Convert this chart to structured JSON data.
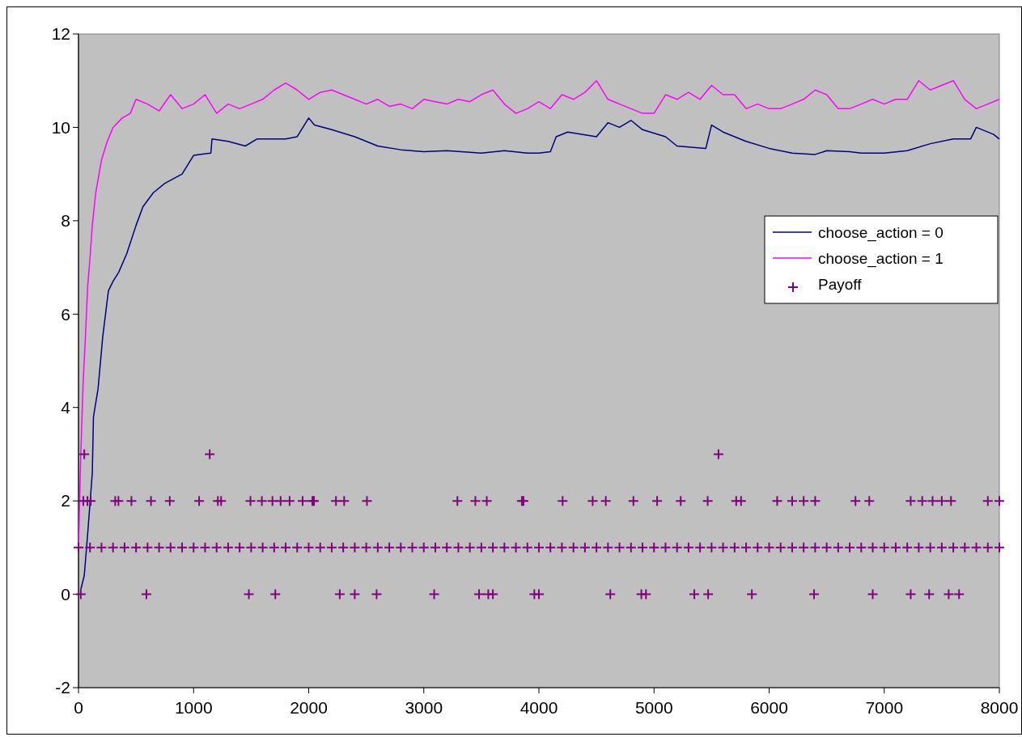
{
  "chart_data": {
    "type": "line",
    "xlim": [
      0,
      8000
    ],
    "xticks": [
      0,
      1000,
      2000,
      3000,
      4000,
      5000,
      6000,
      7000,
      8000
    ],
    "ylim": [
      -2,
      12
    ],
    "yticks": [
      -2,
      0,
      2,
      4,
      6,
      8,
      10,
      12
    ],
    "grid": false,
    "legend": "right",
    "series": [
      {
        "name": "choose_action = 0",
        "color": "#000080",
        "marker": "none",
        "x": [
          20,
          50,
          80,
          120,
          130,
          170,
          210,
          260,
          300,
          350,
          420,
          500,
          560,
          650,
          750,
          900,
          1000,
          1150,
          1160,
          1300,
          1450,
          1550,
          1800,
          1900,
          1950,
          2000,
          2050,
          2200,
          2400,
          2600,
          2800,
          3000,
          3200,
          3500,
          3700,
          3900,
          4000,
          4100,
          4150,
          4250,
          4500,
          4600,
          4700,
          4800,
          4900,
          5100,
          5200,
          5450,
          5500,
          5600,
          5800,
          6000,
          6200,
          6400,
          6500,
          6700,
          6800,
          7000,
          7200,
          7400,
          7600,
          7750,
          7800,
          7950,
          8000
        ],
        "values": [
          0.1,
          0.4,
          1.3,
          2.6,
          3.8,
          4.4,
          5.5,
          6.5,
          6.7,
          6.9,
          7.3,
          7.9,
          8.3,
          8.6,
          8.8,
          9.0,
          9.4,
          9.45,
          9.75,
          9.7,
          9.6,
          9.75,
          9.75,
          9.8,
          10.0,
          10.2,
          10.05,
          9.95,
          9.8,
          9.6,
          9.52,
          9.48,
          9.5,
          9.45,
          9.5,
          9.45,
          9.45,
          9.48,
          9.8,
          9.9,
          9.8,
          10.1,
          10.0,
          10.15,
          9.95,
          9.8,
          9.6,
          9.55,
          10.05,
          9.9,
          9.7,
          9.55,
          9.45,
          9.42,
          9.5,
          9.48,
          9.45,
          9.45,
          9.5,
          9.65,
          9.75,
          9.75,
          10.0,
          9.85,
          9.75
        ]
      },
      {
        "name": "choose_action = 1",
        "color": "#ff00ff",
        "marker": "none",
        "x": [
          0,
          20,
          40,
          60,
          80,
          100,
          120,
          150,
          200,
          250,
          300,
          380,
          450,
          500,
          600,
          700,
          800,
          900,
          1000,
          1100,
          1200,
          1300,
          1400,
          1500,
          1600,
          1700,
          1800,
          1900,
          2000,
          2100,
          2200,
          2300,
          2400,
          2500,
          2600,
          2700,
          2800,
          2900,
          3000,
          3100,
          3200,
          3300,
          3400,
          3500,
          3600,
          3700,
          3800,
          3900,
          4000,
          4100,
          4200,
          4300,
          4400,
          4500,
          4600,
          4700,
          4800,
          4900,
          5000,
          5100,
          5200,
          5300,
          5400,
          5500,
          5600,
          5700,
          5800,
          5900,
          6000,
          6100,
          6200,
          6300,
          6400,
          6500,
          6600,
          6700,
          6800,
          6900,
          7000,
          7100,
          7200,
          7300,
          7400,
          7500,
          7600,
          7700,
          7800,
          7900,
          8000
        ],
        "values": [
          1,
          3,
          4.5,
          5.5,
          6.6,
          7.2,
          7.9,
          8.6,
          9.3,
          9.7,
          10.0,
          10.2,
          10.3,
          10.6,
          10.5,
          10.35,
          10.7,
          10.4,
          10.5,
          10.7,
          10.3,
          10.5,
          10.4,
          10.5,
          10.6,
          10.8,
          10.95,
          10.8,
          10.6,
          10.75,
          10.8,
          10.7,
          10.6,
          10.5,
          10.6,
          10.45,
          10.5,
          10.4,
          10.6,
          10.55,
          10.5,
          10.6,
          10.55,
          10.7,
          10.8,
          10.5,
          10.3,
          10.4,
          10.55,
          10.4,
          10.7,
          10.6,
          10.75,
          11.0,
          10.6,
          10.5,
          10.4,
          10.3,
          10.3,
          10.7,
          10.6,
          10.75,
          10.6,
          10.9,
          10.7,
          10.7,
          10.4,
          10.5,
          10.4,
          10.4,
          10.5,
          10.6,
          10.8,
          10.7,
          10.4,
          10.4,
          10.5,
          10.6,
          10.5,
          10.6,
          10.6,
          11.0,
          10.8,
          10.9,
          11.0,
          10.6,
          10.4,
          10.5,
          10.6
        ]
      },
      {
        "name": "Payoff",
        "color": "#800080",
        "type": "scatter",
        "marker": "cross",
        "x": [
          50,
          1140,
          5560,
          42,
          78,
          106,
          319,
          347,
          460,
          630,
          793,
          1048,
          1211,
          1239,
          1494,
          1593,
          1685,
          1756,
          1834,
          1947,
          2032,
          2046,
          2237,
          2308,
          2506,
          3292,
          3448,
          3547,
          3852,
          3866,
          4206,
          4467,
          4581,
          4821,
          5027,
          5232,
          5466,
          5714,
          5756,
          6070,
          6200,
          6300,
          6400,
          6750,
          6870,
          7230,
          7330,
          7420,
          7500,
          7580,
          7900,
          8000,
          20,
          590,
          1480,
          1710,
          2270,
          2400,
          2590,
          3090,
          3480,
          3560,
          3600,
          3960,
          4000,
          4620,
          4890,
          4930,
          5350,
          5470,
          5850,
          6390,
          6900,
          7230,
          7390,
          7560,
          7650,
          0,
          100,
          200,
          300,
          400,
          500,
          600,
          700,
          800,
          900,
          1000,
          1100,
          1200,
          1300,
          1400,
          1500,
          1600,
          1700,
          1800,
          1900,
          2000,
          2100,
          2200,
          2300,
          2400,
          2500,
          2600,
          2700,
          2800,
          2900,
          3000,
          3100,
          3200,
          3300,
          3400,
          3500,
          3600,
          3700,
          3800,
          3900,
          4000,
          4100,
          4200,
          4300,
          4400,
          4500,
          4600,
          4700,
          4800,
          4900,
          5000,
          5100,
          5200,
          5300,
          5400,
          5500,
          5600,
          5700,
          5800,
          5900,
          6000,
          6100,
          6200,
          6300,
          6400,
          6500,
          6600,
          6700,
          6800,
          6900,
          7000,
          7100,
          7200,
          7300,
          7400,
          7500,
          7600,
          7700,
          7800,
          7900,
          8000
        ],
        "values": [
          3,
          3,
          3,
          2,
          2,
          2,
          2,
          2,
          2,
          2,
          2,
          2,
          2,
          2,
          2,
          2,
          2,
          2,
          2,
          2,
          2,
          2,
          2,
          2,
          2,
          2,
          2,
          2,
          2,
          2,
          2,
          2,
          2,
          2,
          2,
          2,
          2,
          2,
          2,
          2,
          2,
          2,
          2,
          2,
          2,
          2,
          2,
          2,
          2,
          2,
          2,
          2,
          0,
          0,
          0,
          0,
          0,
          0,
          0,
          0,
          0,
          0,
          0,
          0,
          0,
          0,
          0,
          0,
          0,
          0,
          0,
          0,
          0,
          0,
          0,
          0,
          0,
          1,
          1,
          1,
          1,
          1,
          1,
          1,
          1,
          1,
          1,
          1,
          1,
          1,
          1,
          1,
          1,
          1,
          1,
          1,
          1,
          1,
          1,
          1,
          1,
          1,
          1,
          1,
          1,
          1,
          1,
          1,
          1,
          1,
          1,
          1,
          1,
          1,
          1,
          1,
          1,
          1,
          1,
          1,
          1,
          1,
          1,
          1,
          1,
          1,
          1,
          1,
          1,
          1,
          1,
          1,
          1,
          1,
          1,
          1,
          1,
          1,
          1,
          1,
          1,
          1,
          1,
          1,
          1,
          1,
          1,
          1,
          1,
          1,
          1,
          1,
          1,
          1,
          1,
          1,
          1,
          1
        ]
      }
    ]
  }
}
